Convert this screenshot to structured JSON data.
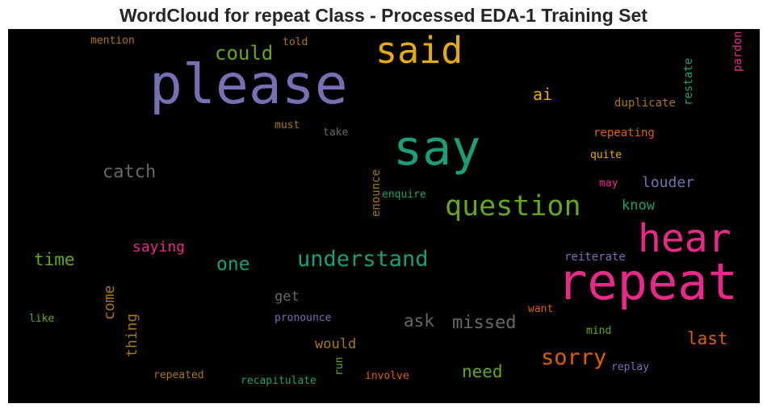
{
  "title": "WordCloud for repeat Class - Processed EDA-1 Training Set",
  "chart_data": {
    "type": "wordcloud",
    "background": "#000000",
    "words": [
      {
        "text": "please",
        "color": "#7570b3"
      },
      {
        "text": "repeat",
        "color": "#e7298a"
      },
      {
        "text": "say",
        "color": "#1b9e77"
      },
      {
        "text": "said",
        "color": "#e6ab02"
      },
      {
        "text": "hear",
        "color": "#e7298a"
      },
      {
        "text": "question",
        "color": "#66a61e"
      },
      {
        "text": "understand",
        "color": "#1b9e77"
      },
      {
        "text": "could",
        "color": "#66a61e"
      },
      {
        "text": "sorry",
        "color": "#d95f02"
      },
      {
        "text": "catch",
        "color": "#666666"
      },
      {
        "text": "one",
        "color": "#1b9e77"
      },
      {
        "text": "missed",
        "color": "#666666"
      },
      {
        "text": "time",
        "color": "#66a61e"
      },
      {
        "text": "ask",
        "color": "#666666"
      },
      {
        "text": "last",
        "color": "#d95f02"
      },
      {
        "text": "need",
        "color": "#66a61e"
      },
      {
        "text": "ai",
        "color": "#e6ab02"
      },
      {
        "text": "louder",
        "color": "#7570b3"
      },
      {
        "text": "saying",
        "color": "#e7298a"
      },
      {
        "text": "would",
        "color": "#a6761d"
      },
      {
        "text": "get",
        "color": "#666666"
      },
      {
        "text": "know",
        "color": "#1b9e77"
      },
      {
        "text": "come",
        "color": "#a6761d"
      },
      {
        "text": "thing",
        "color": "#a6761d"
      },
      {
        "text": "duplicate",
        "color": "#a6761d"
      },
      {
        "text": "repeating",
        "color": "#d95f02"
      },
      {
        "text": "reiterate",
        "color": "#7570b3"
      },
      {
        "text": "restate",
        "color": "#1b9e77"
      },
      {
        "text": "pardon",
        "color": "#e7298a"
      },
      {
        "text": "enounce",
        "color": "#a6761d"
      },
      {
        "text": "mention",
        "color": "#a6761d"
      },
      {
        "text": "told",
        "color": "#a6761d"
      },
      {
        "text": "must",
        "color": "#a6761d"
      },
      {
        "text": "take",
        "color": "#666666"
      },
      {
        "text": "quite",
        "color": "#e6ab02"
      },
      {
        "text": "may",
        "color": "#e7298a"
      },
      {
        "text": "enquire",
        "color": "#1b9e77"
      },
      {
        "text": "pronounce",
        "color": "#7570b3"
      },
      {
        "text": "want",
        "color": "#d95f02"
      },
      {
        "text": "mind",
        "color": "#66a61e"
      },
      {
        "text": "like",
        "color": "#66a61e"
      },
      {
        "text": "run",
        "color": "#66a61e"
      },
      {
        "text": "replay",
        "color": "#7570b3"
      },
      {
        "text": "repeated",
        "color": "#a6761d"
      },
      {
        "text": "recapitulate",
        "color": "#1b9e77"
      },
      {
        "text": "involve",
        "color": "#d95f02"
      }
    ]
  }
}
